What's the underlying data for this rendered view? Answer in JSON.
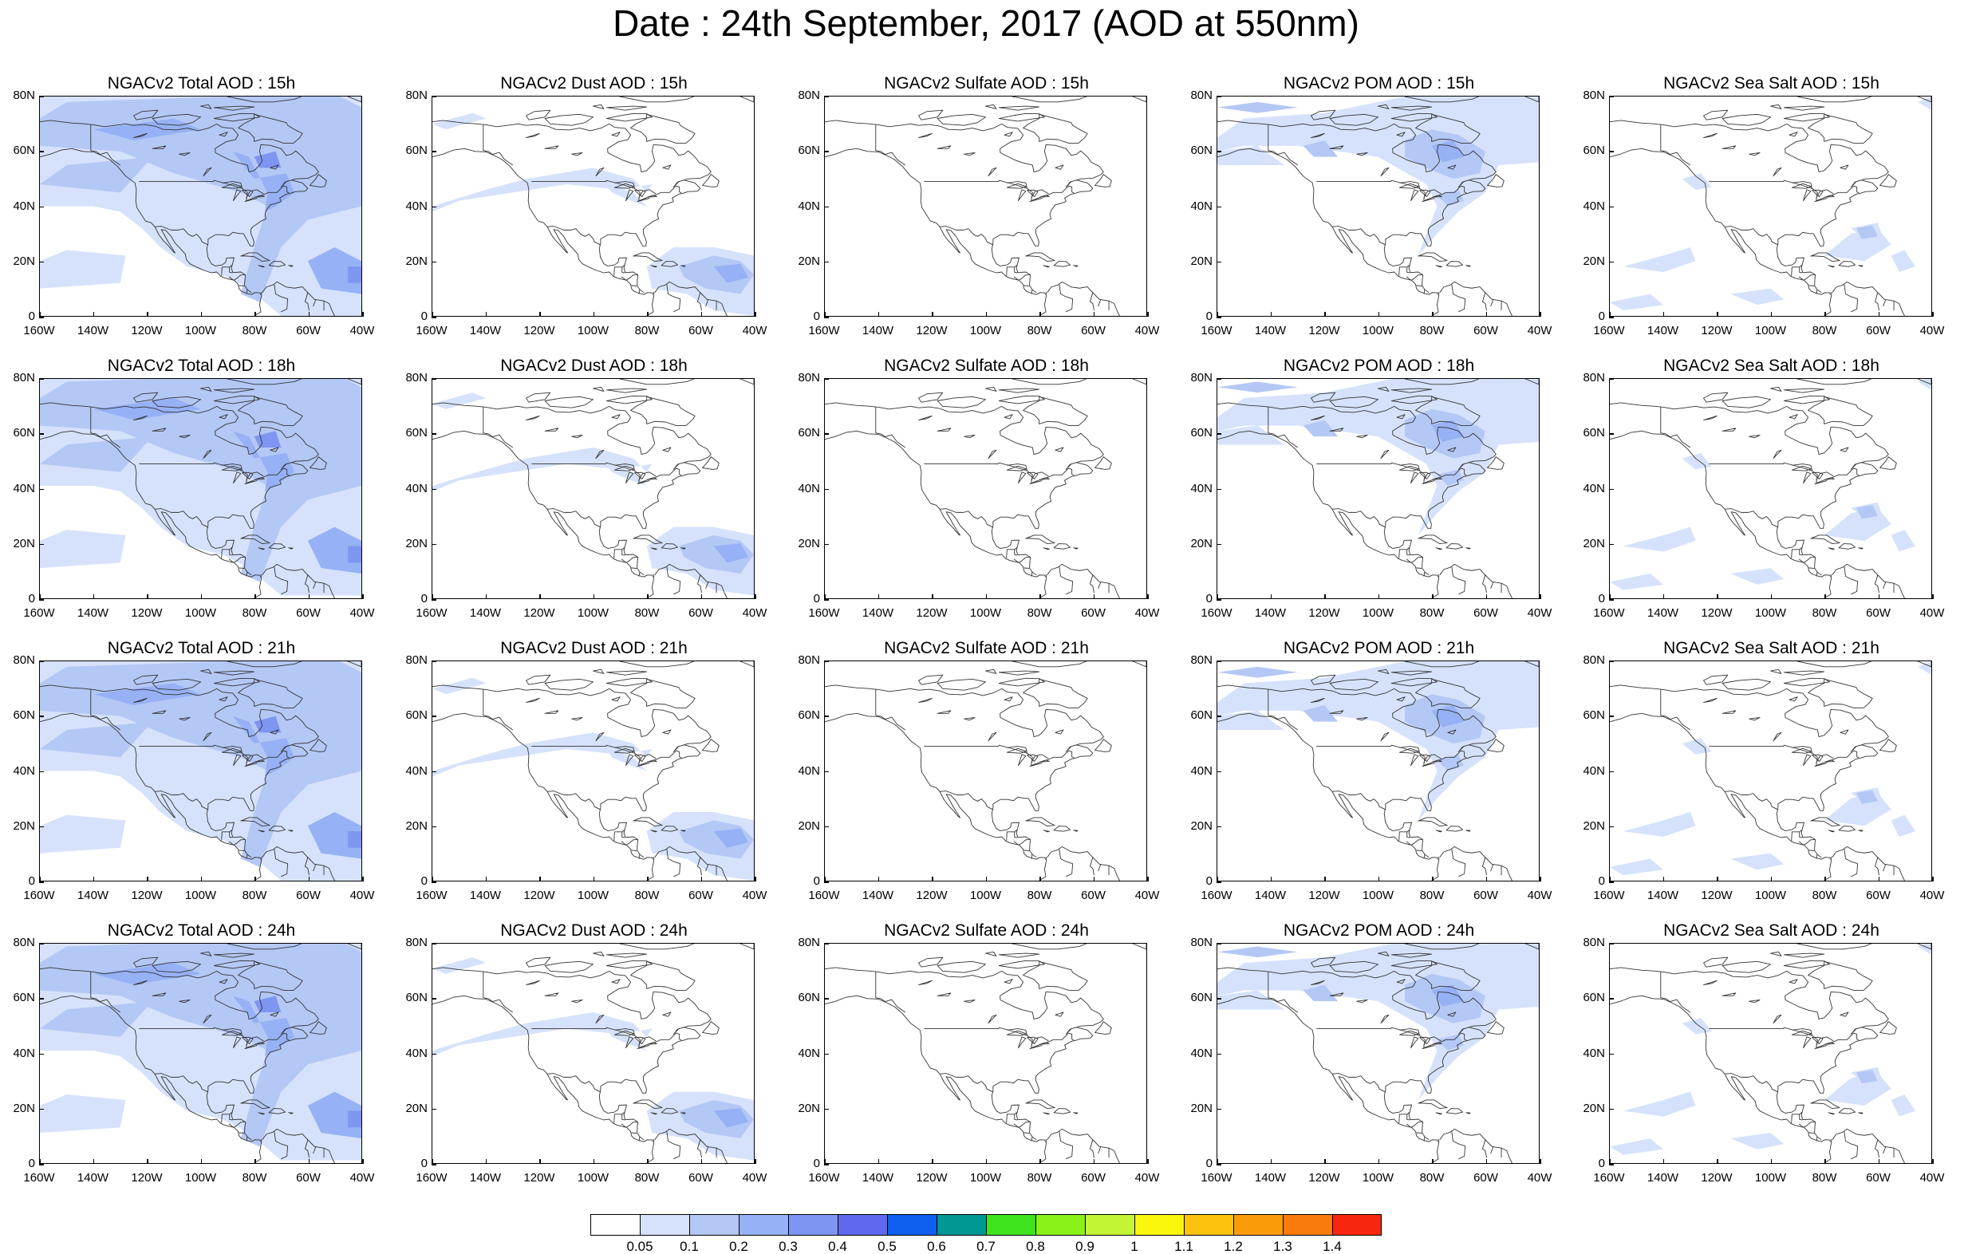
{
  "title": "Date : 24th September, 2017 (AOD at 550nm)",
  "columns": [
    {
      "species": "total",
      "titles": [
        "NGACv2 Total AOD : 15h",
        "NGACv2 Total AOD : 18h",
        "NGACv2 Total AOD : 21h",
        "NGACv2 Total AOD : 24h"
      ]
    },
    {
      "species": "dust",
      "titles": [
        "NGACv2 Dust AOD : 15h",
        "NGACv2 Dust AOD : 18h",
        "NGACv2 Dust AOD : 21h",
        "NGACv2 Dust AOD : 24h"
      ]
    },
    {
      "species": "sulfate",
      "titles": [
        "NGACv2 Sulfate AOD : 15h",
        "NGACv2 Sulfate AOD : 18h",
        "NGACv2 Sulfate AOD : 21h",
        "NGACv2 Sulfate AOD : 24h"
      ]
    },
    {
      "species": "pom",
      "titles": [
        "NGACv2 POM AOD : 15h",
        "NGACv2 POM AOD : 18h",
        "NGACv2 POM AOD : 21h",
        "NGACv2 POM AOD : 24h"
      ]
    },
    {
      "species": "seasalt",
      "titles": [
        "NGACv2 Sea Salt AOD : 15h",
        "NGACv2 Sea Salt AOD : 18h",
        "NGACv2 Sea Salt AOD : 21h",
        "NGACv2 Sea Salt  AOD : 24h"
      ]
    }
  ],
  "lat_labels": [
    "80N",
    "60N",
    "40N",
    "20N",
    "0"
  ],
  "lon_labels": [
    "160W",
    "140W",
    "120W",
    "100W",
    "80W",
    "60W",
    "40W"
  ],
  "map_extent": {
    "lon_min": -160,
    "lon_max": -40,
    "lat_min": 0,
    "lat_max": 80
  },
  "colorbar": {
    "labels": [
      "0.05",
      "0.1",
      "0.2",
      "0.3",
      "0.4",
      "0.5",
      "0.6",
      "0.7",
      "0.8",
      "0.9",
      "1",
      "1.1",
      "1.2",
      "1.3",
      "1.4"
    ],
    "colors": [
      "#ffffff",
      "#d6e2fb",
      "#b4c8f6",
      "#96b1f5",
      "#7e95f2",
      "#5f68ee",
      "#0f5ff0",
      "#009694",
      "#3ee31e",
      "#8bf219",
      "#c3f535",
      "#faf70d",
      "#fdc20b",
      "#fa9c0a",
      "#f97b0c",
      "#f7260e"
    ]
  }
}
